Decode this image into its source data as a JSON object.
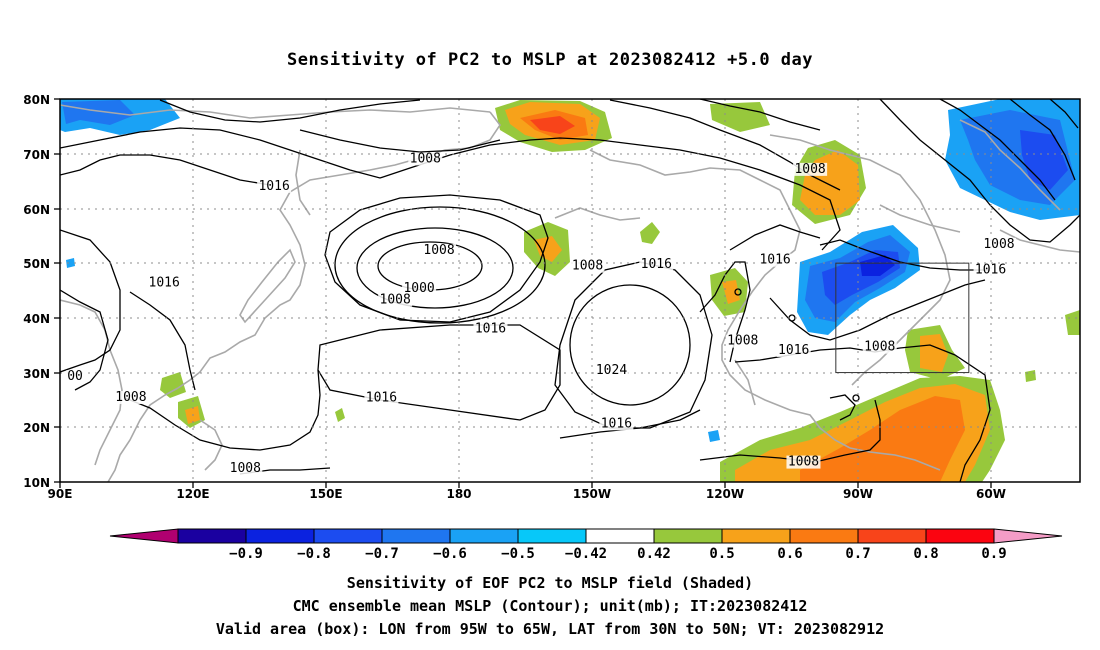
{
  "title": "Sensitivity of PC2 to MSLP at 2023082412 +5.0 day",
  "map": {
    "lon_labels": [
      "90E",
      "120E",
      "150E",
      "180",
      "150W",
      "120W",
      "90W",
      "60W"
    ],
    "lat_labels": [
      "80N",
      "70N",
      "60N",
      "50N",
      "40N",
      "30N",
      "20N",
      "10N"
    ],
    "contour_labels": [
      {
        "text": "1008",
        "lon": 172.4,
        "lat": 68.4
      },
      {
        "text": "1016",
        "lon": 138.3,
        "lat": 63.4
      },
      {
        "text": "1008",
        "lon": 175.5,
        "lat": 51.7
      },
      {
        "text": "1016",
        "lon": 113.5,
        "lat": 45.7
      },
      {
        "text": "1000",
        "lon": 171.0,
        "lat": 44.7
      },
      {
        "text": "1008",
        "lon": 165.6,
        "lat": 42.6
      },
      {
        "text": "1016",
        "lon": -172.9,
        "lat": 37.3
      },
      {
        "text": "1008",
        "lon": -151.0,
        "lat": 48.8
      },
      {
        "text": "1024",
        "lon": -145.6,
        "lat": 29.7
      },
      {
        "text": "1016",
        "lon": -135.5,
        "lat": 49.1
      },
      {
        "text": "1008",
        "lon": -116.0,
        "lat": 35.1
      },
      {
        "text": "1016",
        "lon": -108.7,
        "lat": 49.9
      },
      {
        "text": "1016",
        "lon": -104.5,
        "lat": 33.4
      },
      {
        "text": "1008",
        "lon": -100.8,
        "lat": 66.5
      },
      {
        "text": "1008",
        "lon": -85.1,
        "lat": 34.0
      },
      {
        "text": "1016",
        "lon": 162.5,
        "lat": 24.7
      },
      {
        "text": "1008",
        "lon": 106.0,
        "lat": 24.8
      },
      {
        "text": "1008",
        "lon": 131.8,
        "lat": 11.8
      },
      {
        "text": "1016",
        "lon": -144.5,
        "lat": 20.0
      },
      {
        "text": "1008",
        "lon": -102.3,
        "lat": 13.0
      },
      {
        "text": "1008",
        "lon": -58.2,
        "lat": 52.8
      },
      {
        "text": "1016",
        "lon": -60.1,
        "lat": 48.1
      },
      {
        "text": "00",
        "lon": 93.4,
        "lat": 28.6
      }
    ],
    "valid_box": {
      "lon_w": -95,
      "lon_e": -65,
      "lat_s": 30,
      "lat_n": 50
    }
  },
  "colorbar": {
    "labels": [
      "−0.9",
      "−0.8",
      "−0.7",
      "−0.6",
      "−0.5",
      "−0.42",
      "0.42",
      "0.5",
      "0.6",
      "0.7",
      "0.8",
      "0.9"
    ],
    "colors": [
      "#1a00a0",
      "#0b22e0",
      "#1c4cf0",
      "#1f76f0",
      "#1aa2f5",
      "#07c8f9",
      "#ffffff",
      "#97c83c",
      "#f7a21a",
      "#fa7a12",
      "#f8441a",
      "#fb0410"
    ],
    "end_low_color": "#b00070",
    "end_high_color": "#f49cc6"
  },
  "caption": {
    "line1": "Sensitivity of EOF PC2 to MSLP field (Shaded)",
    "line2": "CMC ensemble mean MSLP (Contour); unit(mb); IT:2023082412",
    "line3": "Valid area (box): LON from 95W to 65W, LAT from 30N to 50N; VT: 2023082912"
  }
}
